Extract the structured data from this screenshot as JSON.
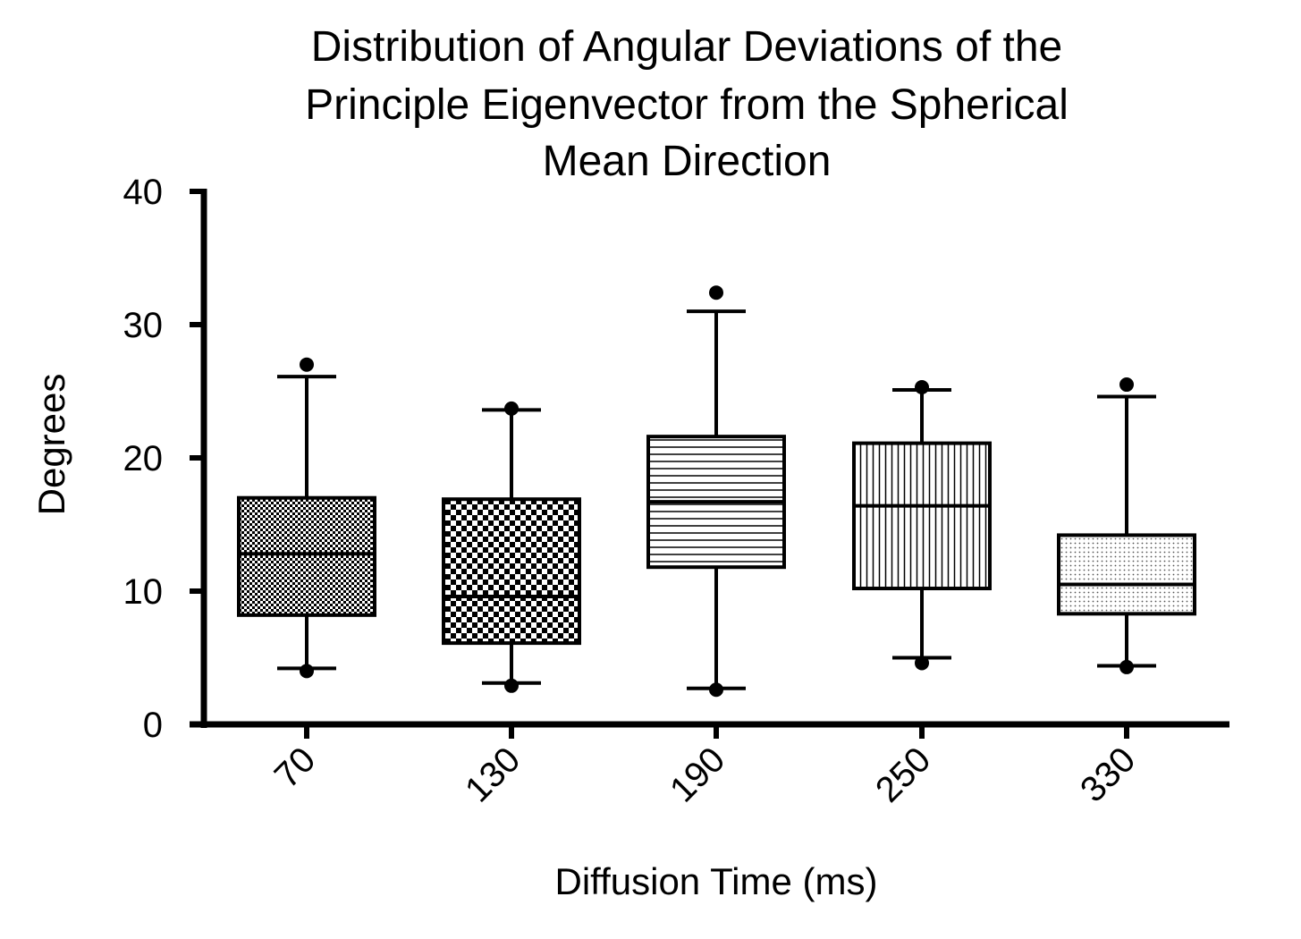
{
  "chart_data": {
    "type": "box",
    "title": [
      "Distribution of Angular Deviations of the",
      "Principle Eigenvector from the Spherical",
      "Mean Direction"
    ],
    "xlabel": "Diffusion Time (ms)",
    "ylabel": "Degrees",
    "ylim": [
      0,
      40
    ],
    "yticks": [
      "0",
      "10",
      "20",
      "30",
      "40"
    ],
    "categories": [
      "70",
      "130",
      "190",
      "250",
      "330"
    ],
    "boxes": [
      {
        "category": "70",
        "whisker_low": 4.2,
        "q1": 8.2,
        "median": 12.8,
        "q3": 17.0,
        "whisker_high": 26.1,
        "outliers": [
          4.0,
          27.0
        ],
        "pattern": "fine-check"
      },
      {
        "category": "130",
        "whisker_low": 3.1,
        "q1": 6.1,
        "median": 9.6,
        "q3": 16.9,
        "whisker_high": 23.6,
        "outliers": [
          2.9,
          23.7
        ],
        "pattern": "checker"
      },
      {
        "category": "190",
        "whisker_low": 2.7,
        "q1": 11.8,
        "median": 16.7,
        "q3": 21.6,
        "whisker_high": 31.0,
        "outliers": [
          2.6,
          32.4
        ],
        "pattern": "horizontal-lines"
      },
      {
        "category": "250",
        "whisker_low": 5.0,
        "q1": 10.2,
        "median": 16.4,
        "q3": 21.1,
        "whisker_high": 25.1,
        "outliers": [
          4.6,
          25.3
        ],
        "pattern": "vertical-lines"
      },
      {
        "category": "330",
        "whisker_low": 4.4,
        "q1": 8.3,
        "median": 10.5,
        "q3": 14.2,
        "whisker_high": 24.6,
        "outliers": [
          4.3,
          25.5
        ],
        "pattern": "dots"
      }
    ],
    "grid": false,
    "legend": "none",
    "colors": {
      "line": "#000000",
      "background": "#ffffff"
    }
  }
}
